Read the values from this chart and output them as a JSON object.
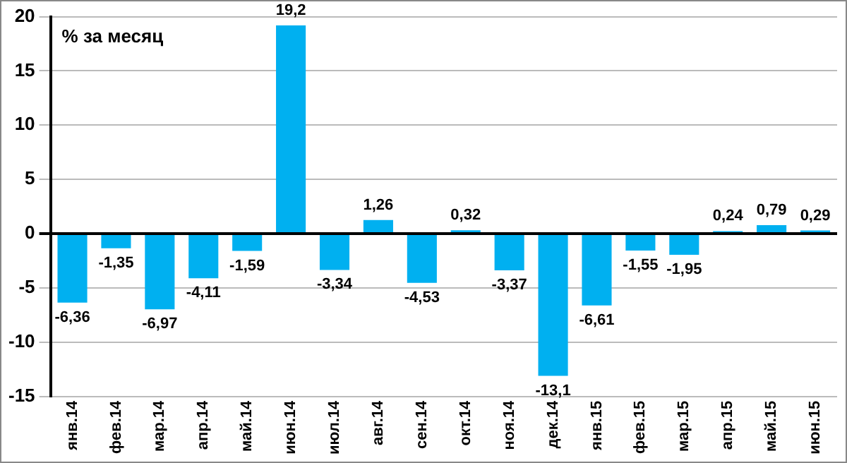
{
  "chart_data": {
    "type": "bar",
    "ylabel": "% за месяц",
    "categories": [
      "янв.14",
      "фев.14",
      "мар.14",
      "апр.14",
      "май.14",
      "июн.14",
      "июл.14",
      "авг.14",
      "сен.14",
      "окт.14",
      "ноя.14",
      "дек.14",
      "янв.15",
      "фев.15",
      "мар.15",
      "апр.15",
      "май.15",
      "июн.15"
    ],
    "values": [
      -6.36,
      -1.35,
      -6.97,
      -4.11,
      -1.59,
      19.2,
      -3.34,
      1.26,
      -4.53,
      0.32,
      -3.37,
      -13.1,
      -6.61,
      -1.55,
      -1.95,
      0.24,
      0.79,
      0.29
    ],
    "value_labels": [
      "-6,36",
      "-1,35",
      "-6,97",
      "-4,11",
      "-1,59",
      "19,2",
      "-3,34",
      "1,26",
      "-4,53",
      "0,32",
      "-3,37",
      "-13,1",
      "-6,61",
      "-1,55",
      "-1,95",
      "0,24",
      "0,79",
      "0,29"
    ],
    "color": "#00b0f0",
    "ylim": [
      -15,
      20
    ],
    "yticks": [
      -15,
      -10,
      -5,
      0,
      5,
      10,
      15,
      20
    ],
    "grid": "y",
    "legend": false
  }
}
